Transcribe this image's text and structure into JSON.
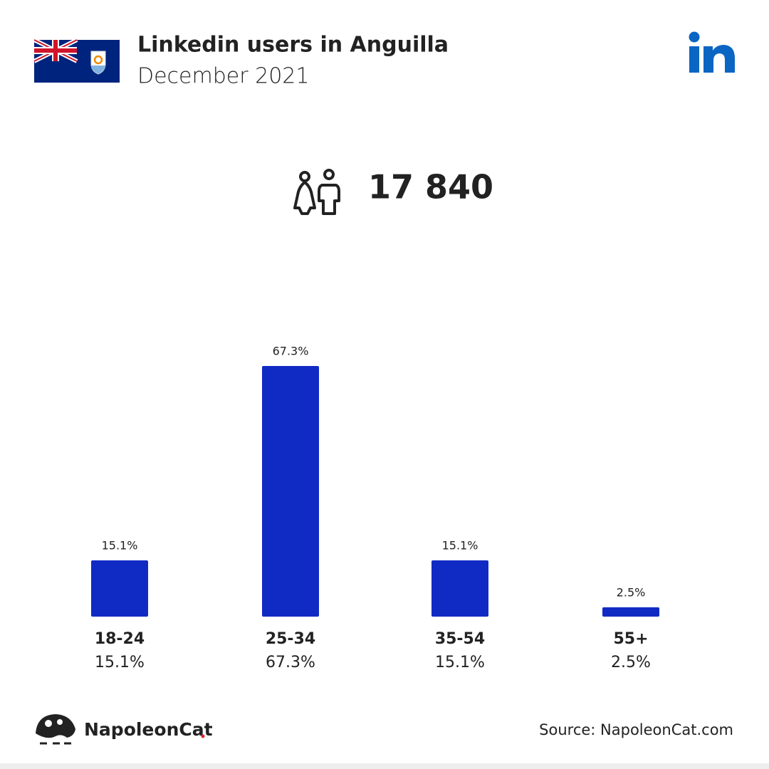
{
  "chart_data": {
    "type": "bar",
    "title": "Linkedin users in Anguilla",
    "subtitle": "December 2021",
    "total": "17 840",
    "categories": [
      "18-24",
      "25-34",
      "35-54",
      "55+"
    ],
    "values": [
      15.1,
      67.3,
      15.1,
      2.5
    ],
    "value_labels": [
      "15.1%",
      "67.3%",
      "15.1%",
      "2.5%"
    ],
    "color": "#102bc4",
    "brand": "NapoleonCat",
    "source": "Source: NapoleonCat.com"
  }
}
